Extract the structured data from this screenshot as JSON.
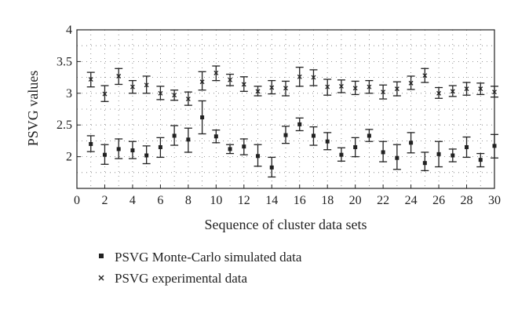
{
  "chart_data": {
    "type": "scatter",
    "title": "",
    "xlabel": "Sequence of cluster data sets",
    "ylabel": "PSVG values",
    "xlim": [
      0,
      30
    ],
    "ylim": [
      1.5,
      4
    ],
    "xticks": [
      "0",
      "2",
      "4",
      "6",
      "8",
      "10",
      "12",
      "14",
      "16",
      "18",
      "20",
      "22",
      "24",
      "26",
      "28",
      "30"
    ],
    "yticks": [
      "2",
      "2.5",
      "3",
      "3.5",
      "4"
    ],
    "grid": "dotted",
    "legend_position": "below",
    "x": [
      1,
      2,
      3,
      4,
      5,
      6,
      7,
      8,
      9,
      10,
      11,
      12,
      13,
      14,
      15,
      16,
      17,
      18,
      19,
      20,
      21,
      22,
      23,
      24,
      25,
      26,
      27,
      28,
      29,
      30
    ],
    "series": [
      {
        "name": "PSVG Monte-Carlo simulated data",
        "marker": "square",
        "values": [
          2.2,
          2.03,
          2.12,
          2.1,
          2.02,
          2.15,
          2.33,
          2.27,
          2.62,
          2.32,
          2.12,
          2.16,
          2.01,
          1.83,
          2.34,
          2.51,
          2.33,
          2.24,
          2.03,
          2.15,
          2.33,
          2.07,
          1.98,
          2.22,
          1.9,
          2.04,
          2.02,
          2.15,
          1.95,
          2.17
        ],
        "err_low": [
          2.08,
          1.88,
          1.97,
          1.97,
          1.89,
          1.99,
          2.18,
          2.07,
          2.36,
          2.22,
          2.05,
          2.03,
          1.85,
          1.68,
          2.21,
          2.41,
          2.18,
          2.11,
          1.93,
          2.0,
          2.24,
          1.92,
          1.8,
          2.06,
          1.78,
          1.84,
          1.92,
          1.99,
          1.84,
          1.98
        ],
        "err_high": [
          2.33,
          2.19,
          2.28,
          2.24,
          2.17,
          2.3,
          2.49,
          2.45,
          2.88,
          2.42,
          2.19,
          2.28,
          2.19,
          1.99,
          2.48,
          2.61,
          2.47,
          2.38,
          2.14,
          2.3,
          2.43,
          2.24,
          2.19,
          2.38,
          2.07,
          2.24,
          2.12,
          2.31,
          2.05,
          2.35
        ]
      },
      {
        "name": "PSVG experimental data",
        "marker": "cross",
        "values": [
          3.22,
          2.99,
          3.27,
          3.1,
          3.13,
          3.0,
          2.97,
          2.91,
          3.18,
          3.32,
          3.21,
          3.14,
          3.03,
          3.09,
          3.08,
          3.26,
          3.25,
          3.1,
          3.11,
          3.08,
          3.1,
          3.02,
          3.07,
          3.16,
          3.28,
          3.0,
          3.03,
          3.07,
          3.07,
          3.02
        ],
        "err_low": [
          3.1,
          2.87,
          3.14,
          3.0,
          3.0,
          2.9,
          2.89,
          2.81,
          3.05,
          3.2,
          3.12,
          3.03,
          2.96,
          2.99,
          2.96,
          3.11,
          3.12,
          2.97,
          3.01,
          2.98,
          3.0,
          2.91,
          2.96,
          3.06,
          3.17,
          2.92,
          2.95,
          2.97,
          2.98,
          2.94
        ],
        "err_high": [
          3.33,
          3.12,
          3.39,
          3.2,
          3.27,
          3.11,
          3.05,
          3.02,
          3.34,
          3.43,
          3.3,
          3.26,
          3.11,
          3.2,
          3.19,
          3.41,
          3.37,
          3.22,
          3.21,
          3.19,
          3.2,
          3.13,
          3.18,
          3.27,
          3.39,
          3.09,
          3.12,
          3.17,
          3.16,
          3.11
        ]
      }
    ]
  }
}
